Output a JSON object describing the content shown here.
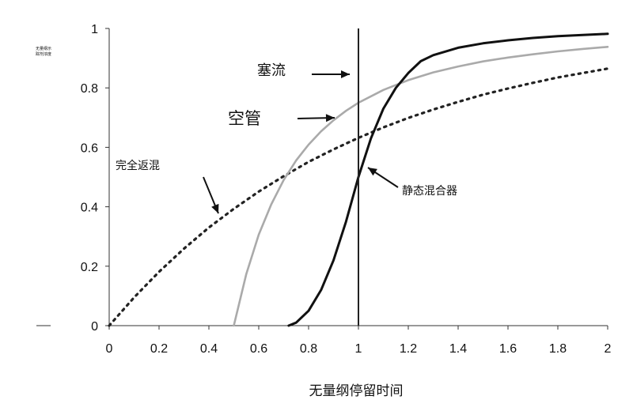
{
  "chart_data": {
    "type": "line",
    "xlabel": "无量纲停留时间",
    "ylabel_lines": [
      "无量纲示",
      "踪剂浓度"
    ],
    "xlim": [
      0,
      2
    ],
    "ylim": [
      0,
      1
    ],
    "xticks": [
      "0",
      "0.2",
      "0.4",
      "0.6",
      "0.8",
      "1",
      "1.2",
      "1.4",
      "1.6",
      "1.8",
      "2"
    ],
    "yticks": [
      "0",
      "0.2",
      "0.4",
      "0.6",
      "0.8",
      "1"
    ],
    "grid": false,
    "legend": "none",
    "vline_x": 1,
    "series": [
      {
        "key": "full-backmix",
        "style": "dotted",
        "color": "#222222",
        "points": [
          [
            0,
            0
          ],
          [
            0.1,
            0.095
          ],
          [
            0.2,
            0.181
          ],
          [
            0.3,
            0.259
          ],
          [
            0.4,
            0.33
          ],
          [
            0.5,
            0.393
          ],
          [
            0.6,
            0.451
          ],
          [
            0.7,
            0.503
          ],
          [
            0.8,
            0.551
          ],
          [
            0.9,
            0.593
          ],
          [
            1.0,
            0.632
          ],
          [
            1.1,
            0.667
          ],
          [
            1.2,
            0.699
          ],
          [
            1.3,
            0.727
          ],
          [
            1.4,
            0.753
          ],
          [
            1.5,
            0.777
          ],
          [
            1.6,
            0.798
          ],
          [
            1.7,
            0.817
          ],
          [
            1.8,
            0.835
          ],
          [
            1.9,
            0.85
          ],
          [
            2.0,
            0.865
          ]
        ]
      },
      {
        "key": "empty-pipe",
        "style": "solid",
        "color": "#aaaaaa",
        "points": [
          [
            0.5,
            0
          ],
          [
            0.55,
            0.174
          ],
          [
            0.6,
            0.306
          ],
          [
            0.65,
            0.408
          ],
          [
            0.7,
            0.49
          ],
          [
            0.75,
            0.556
          ],
          [
            0.8,
            0.609
          ],
          [
            0.85,
            0.654
          ],
          [
            0.9,
            0.691
          ],
          [
            0.95,
            0.723
          ],
          [
            1.0,
            0.75
          ],
          [
            1.1,
            0.793
          ],
          [
            1.2,
            0.826
          ],
          [
            1.3,
            0.852
          ],
          [
            1.4,
            0.872
          ],
          [
            1.5,
            0.889
          ],
          [
            1.6,
            0.902
          ],
          [
            1.7,
            0.913
          ],
          [
            1.8,
            0.923
          ],
          [
            1.9,
            0.931
          ],
          [
            2.0,
            0.938
          ]
        ]
      },
      {
        "key": "static-mixer",
        "style": "solid",
        "color": "#111111",
        "points": [
          [
            0.72,
            0
          ],
          [
            0.75,
            0.01
          ],
          [
            0.8,
            0.05
          ],
          [
            0.85,
            0.12
          ],
          [
            0.9,
            0.22
          ],
          [
            0.95,
            0.35
          ],
          [
            1.0,
            0.5
          ],
          [
            1.05,
            0.63
          ],
          [
            1.1,
            0.73
          ],
          [
            1.15,
            0.8
          ],
          [
            1.2,
            0.85
          ],
          [
            1.25,
            0.89
          ],
          [
            1.3,
            0.91
          ],
          [
            1.4,
            0.935
          ],
          [
            1.5,
            0.95
          ],
          [
            1.6,
            0.96
          ],
          [
            1.7,
            0.968
          ],
          [
            1.8,
            0.974
          ],
          [
            1.9,
            0.978
          ],
          [
            2.0,
            0.982
          ]
        ]
      }
    ],
    "annotations": [
      {
        "key": "plug-flow",
        "text": "塞流",
        "size": 18
      },
      {
        "key": "empty-pipe",
        "text": "空管",
        "size": 21
      },
      {
        "key": "full-backmix",
        "text": "完全返混",
        "size": 14
      },
      {
        "key": "static-mixer",
        "text": "静态混合器",
        "size": 14
      }
    ]
  }
}
